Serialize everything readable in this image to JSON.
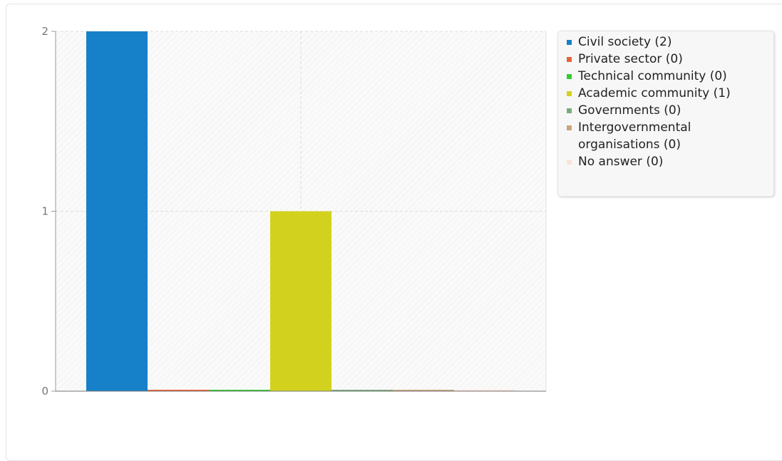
{
  "chart_data": {
    "type": "bar",
    "categories": [
      "Civil society",
      "Private sector",
      "Technical community",
      "Academic community",
      "Governments",
      "Intergovernmental organisations",
      "No answer"
    ],
    "values": [
      2,
      0,
      0,
      1,
      0,
      0,
      0
    ],
    "colors": [
      "#1680c8",
      "#e8623a",
      "#33cc33",
      "#d2d21e",
      "#7bab7b",
      "#c9a57e",
      "#fbe4d8"
    ],
    "ylim": [
      0,
      2
    ],
    "yticks": [
      "0",
      "1",
      "2"
    ],
    "grid": true,
    "legend_position": "right",
    "legend": [
      {
        "label": "Civil society (2)",
        "color": "#1680c8"
      },
      {
        "label": "Private sector (0)",
        "color": "#e8623a"
      },
      {
        "label": "Technical community (0)",
        "color": "#33cc33"
      },
      {
        "label": "Academic community (1)",
        "color": "#d2d21e"
      },
      {
        "label": "Governments (0)",
        "color": "#7bab7b"
      },
      {
        "label": "Intergovernmental organisations (0)",
        "color": "#c9a57e"
      },
      {
        "label": "No answer (0)",
        "color": "#fbe4d8"
      }
    ]
  }
}
